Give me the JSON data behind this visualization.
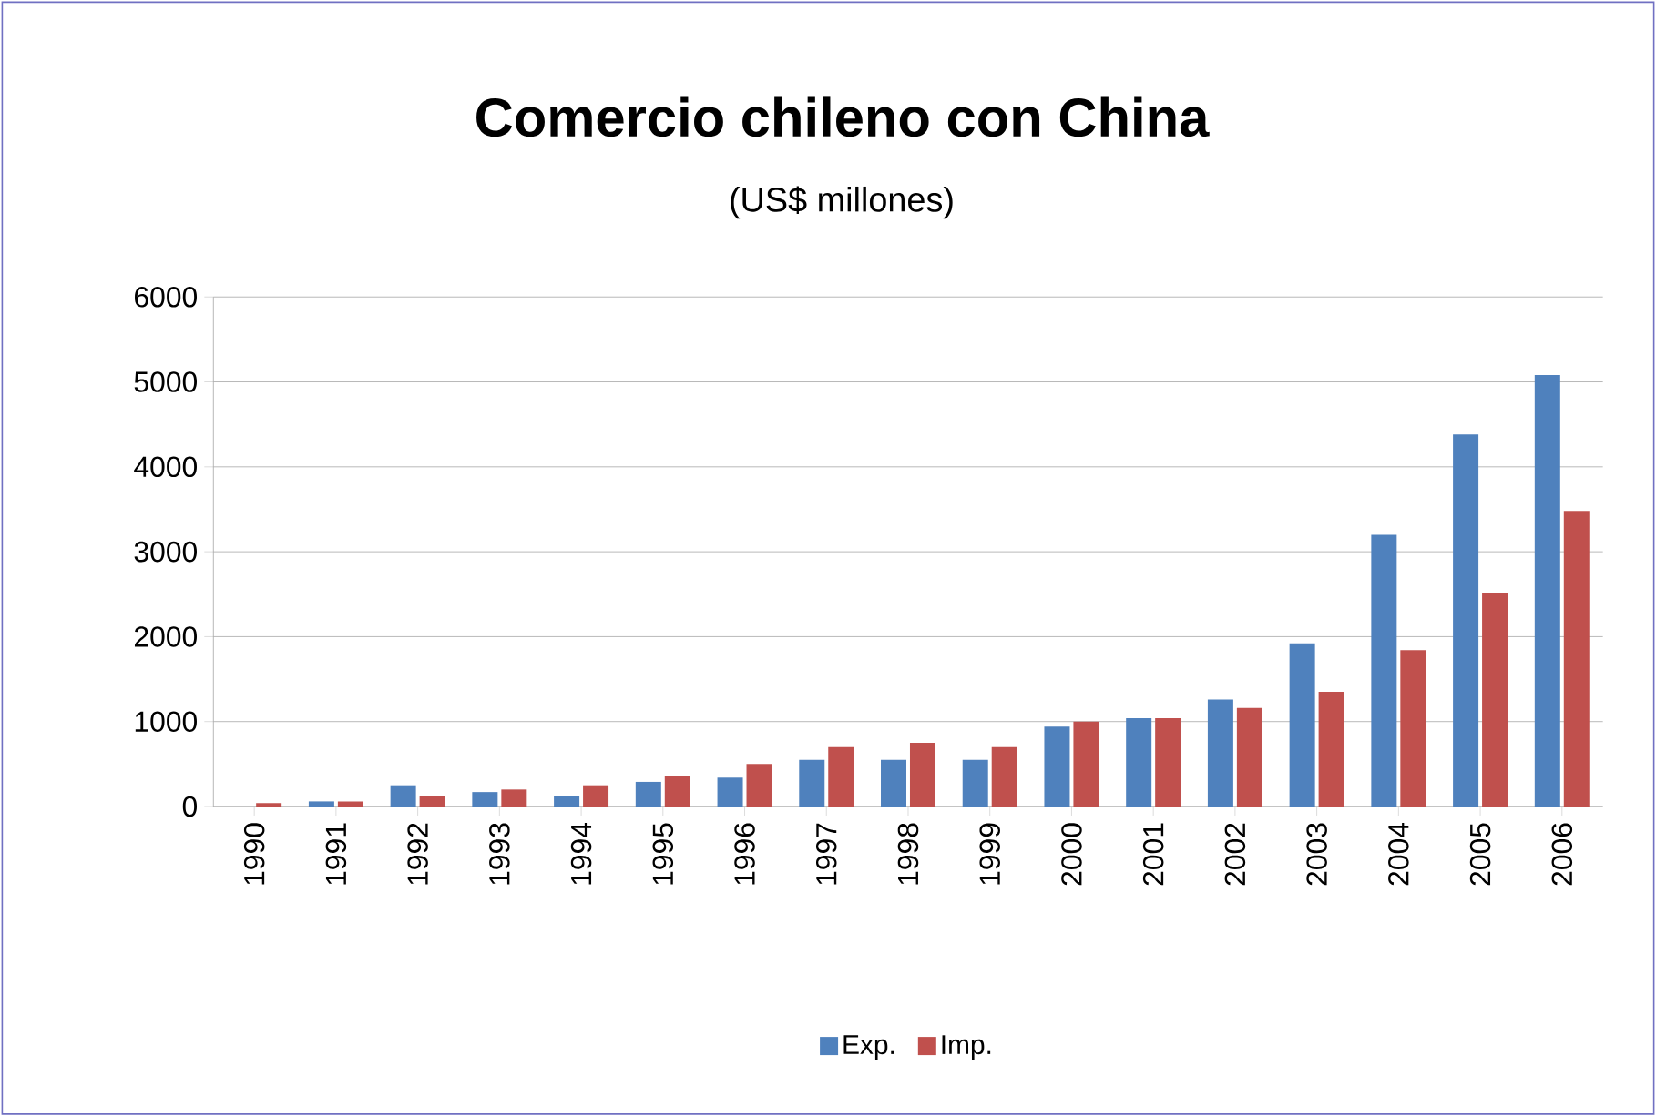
{
  "chart_data": {
    "type": "bar",
    "title": "Comercio chileno con China",
    "subtitle": "(US$ millones)",
    "categories": [
      "1990",
      "1991",
      "1992",
      "1993",
      "1994",
      "1995",
      "1996",
      "1997",
      "1998",
      "1999",
      "2000",
      "2001",
      "2002",
      "2003",
      "2004",
      "2005",
      "2006"
    ],
    "series": [
      {
        "name": "Exp.",
        "color": "#4f81bd",
        "values": [
          0,
          60,
          250,
          170,
          120,
          290,
          340,
          550,
          550,
          550,
          940,
          1040,
          1260,
          1920,
          3200,
          4380,
          5080
        ]
      },
      {
        "name": "Imp.",
        "color": "#c0504d",
        "values": [
          40,
          60,
          120,
          200,
          250,
          360,
          500,
          700,
          750,
          700,
          1000,
          1040,
          1160,
          1350,
          1840,
          2520,
          3480
        ]
      }
    ],
    "ylim": [
      0,
      6000
    ],
    "yticks": [
      0,
      1000,
      2000,
      3000,
      4000,
      5000,
      6000
    ],
    "grid": "y",
    "legend": "bottom"
  }
}
